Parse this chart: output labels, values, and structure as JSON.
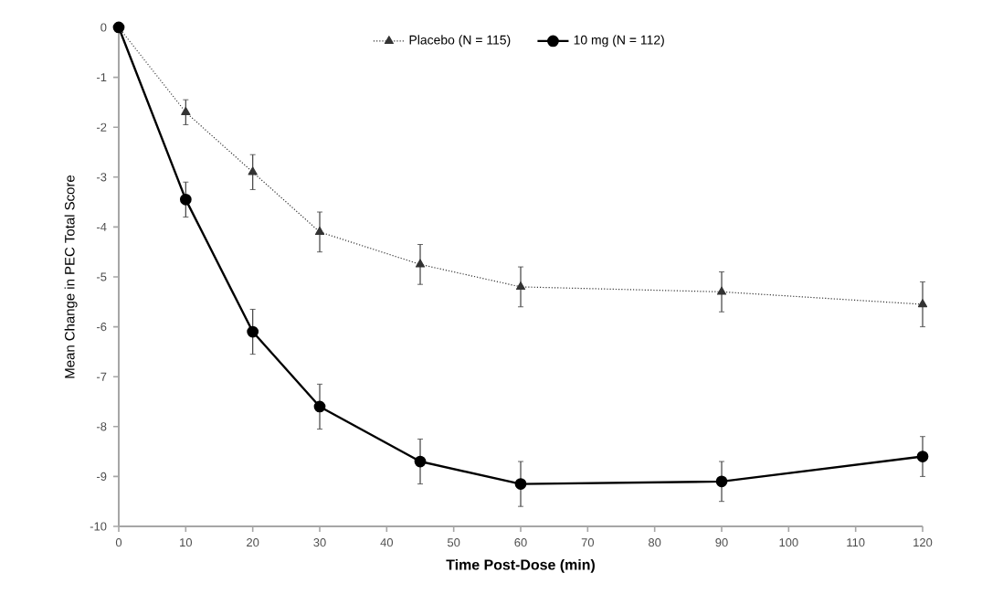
{
  "chart_data": {
    "type": "line",
    "xlabel": "Time Post-Dose (min)",
    "ylabel": "Mean Change in PEC Total Score",
    "x": [
      0,
      10,
      20,
      30,
      45,
      60,
      90,
      120
    ],
    "series": [
      {
        "name": "Placebo (N = 115)",
        "color": "#333333",
        "marker": "triangle",
        "line_style": "dotted",
        "values": [
          0,
          -1.7,
          -2.9,
          -4.1,
          -4.75,
          -5.2,
          -5.3,
          -5.55
        ],
        "errors": [
          null,
          0.25,
          0.35,
          0.4,
          0.4,
          0.4,
          0.4,
          0.45
        ]
      },
      {
        "name": "10 mg (N = 112)",
        "color": "#000000",
        "marker": "circle",
        "line_style": "solid",
        "values": [
          0,
          -3.45,
          -6.1,
          -7.6,
          -8.7,
          -9.15,
          -9.1,
          -8.6
        ],
        "errors": [
          null,
          0.35,
          0.45,
          0.45,
          0.45,
          0.45,
          0.4,
          0.4
        ]
      }
    ],
    "xlim": [
      0,
      120
    ],
    "xticks": [
      0,
      10,
      20,
      30,
      40,
      50,
      60,
      70,
      80,
      90,
      100,
      110,
      120
    ],
    "ylim": [
      -10,
      0
    ],
    "yticks": [
      -10,
      -9,
      -8,
      -7,
      -6,
      -5,
      -4,
      -3,
      -2,
      -1,
      0
    ],
    "grid": false,
    "legend": "top"
  }
}
